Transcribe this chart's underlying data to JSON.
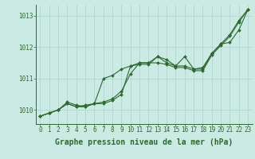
{
  "x": [
    0,
    1,
    2,
    3,
    4,
    5,
    6,
    7,
    8,
    9,
    10,
    11,
    12,
    13,
    14,
    15,
    16,
    17,
    18,
    19,
    20,
    21,
    22,
    23
  ],
  "line1": [
    1009.8,
    1009.9,
    1010.0,
    1010.2,
    1010.1,
    1010.1,
    1010.2,
    1010.2,
    1010.3,
    1010.5,
    1011.4,
    1011.5,
    1011.5,
    1011.7,
    1011.5,
    1011.4,
    1011.4,
    1011.3,
    1011.35,
    1011.8,
    1012.1,
    1012.4,
    1012.85,
    1013.2
  ],
  "line2": [
    1009.8,
    1009.9,
    1010.0,
    1010.2,
    1010.1,
    1010.15,
    1010.2,
    1011.0,
    1011.1,
    1011.3,
    1011.4,
    1011.45,
    1011.45,
    1011.7,
    1011.6,
    1011.4,
    1011.7,
    1011.3,
    1011.3,
    1011.8,
    1012.1,
    1012.15,
    1012.55,
    1013.2
  ],
  "line3": [
    1009.8,
    1009.9,
    1010.0,
    1010.25,
    1010.15,
    1010.1,
    1010.2,
    1010.25,
    1010.35,
    1010.6,
    1011.15,
    1011.5,
    1011.5,
    1011.5,
    1011.45,
    1011.35,
    1011.35,
    1011.25,
    1011.25,
    1011.75,
    1012.05,
    1012.35,
    1012.8,
    1013.2
  ],
  "bg_color": "#cceae4",
  "grid_color": "#aad4cc",
  "line_color": "#2d6a2d",
  "ylabel_ticks": [
    1010,
    1011,
    1012,
    1013
  ],
  "xlabel_label": "Graphe pression niveau de la mer (hPa)",
  "ylim": [
    1009.55,
    1013.35
  ],
  "xlim": [
    -0.5,
    23.5
  ],
  "tick_fontsize": 5.5,
  "label_fontsize": 7.0,
  "markersize": 2.0,
  "linewidth": 0.8
}
